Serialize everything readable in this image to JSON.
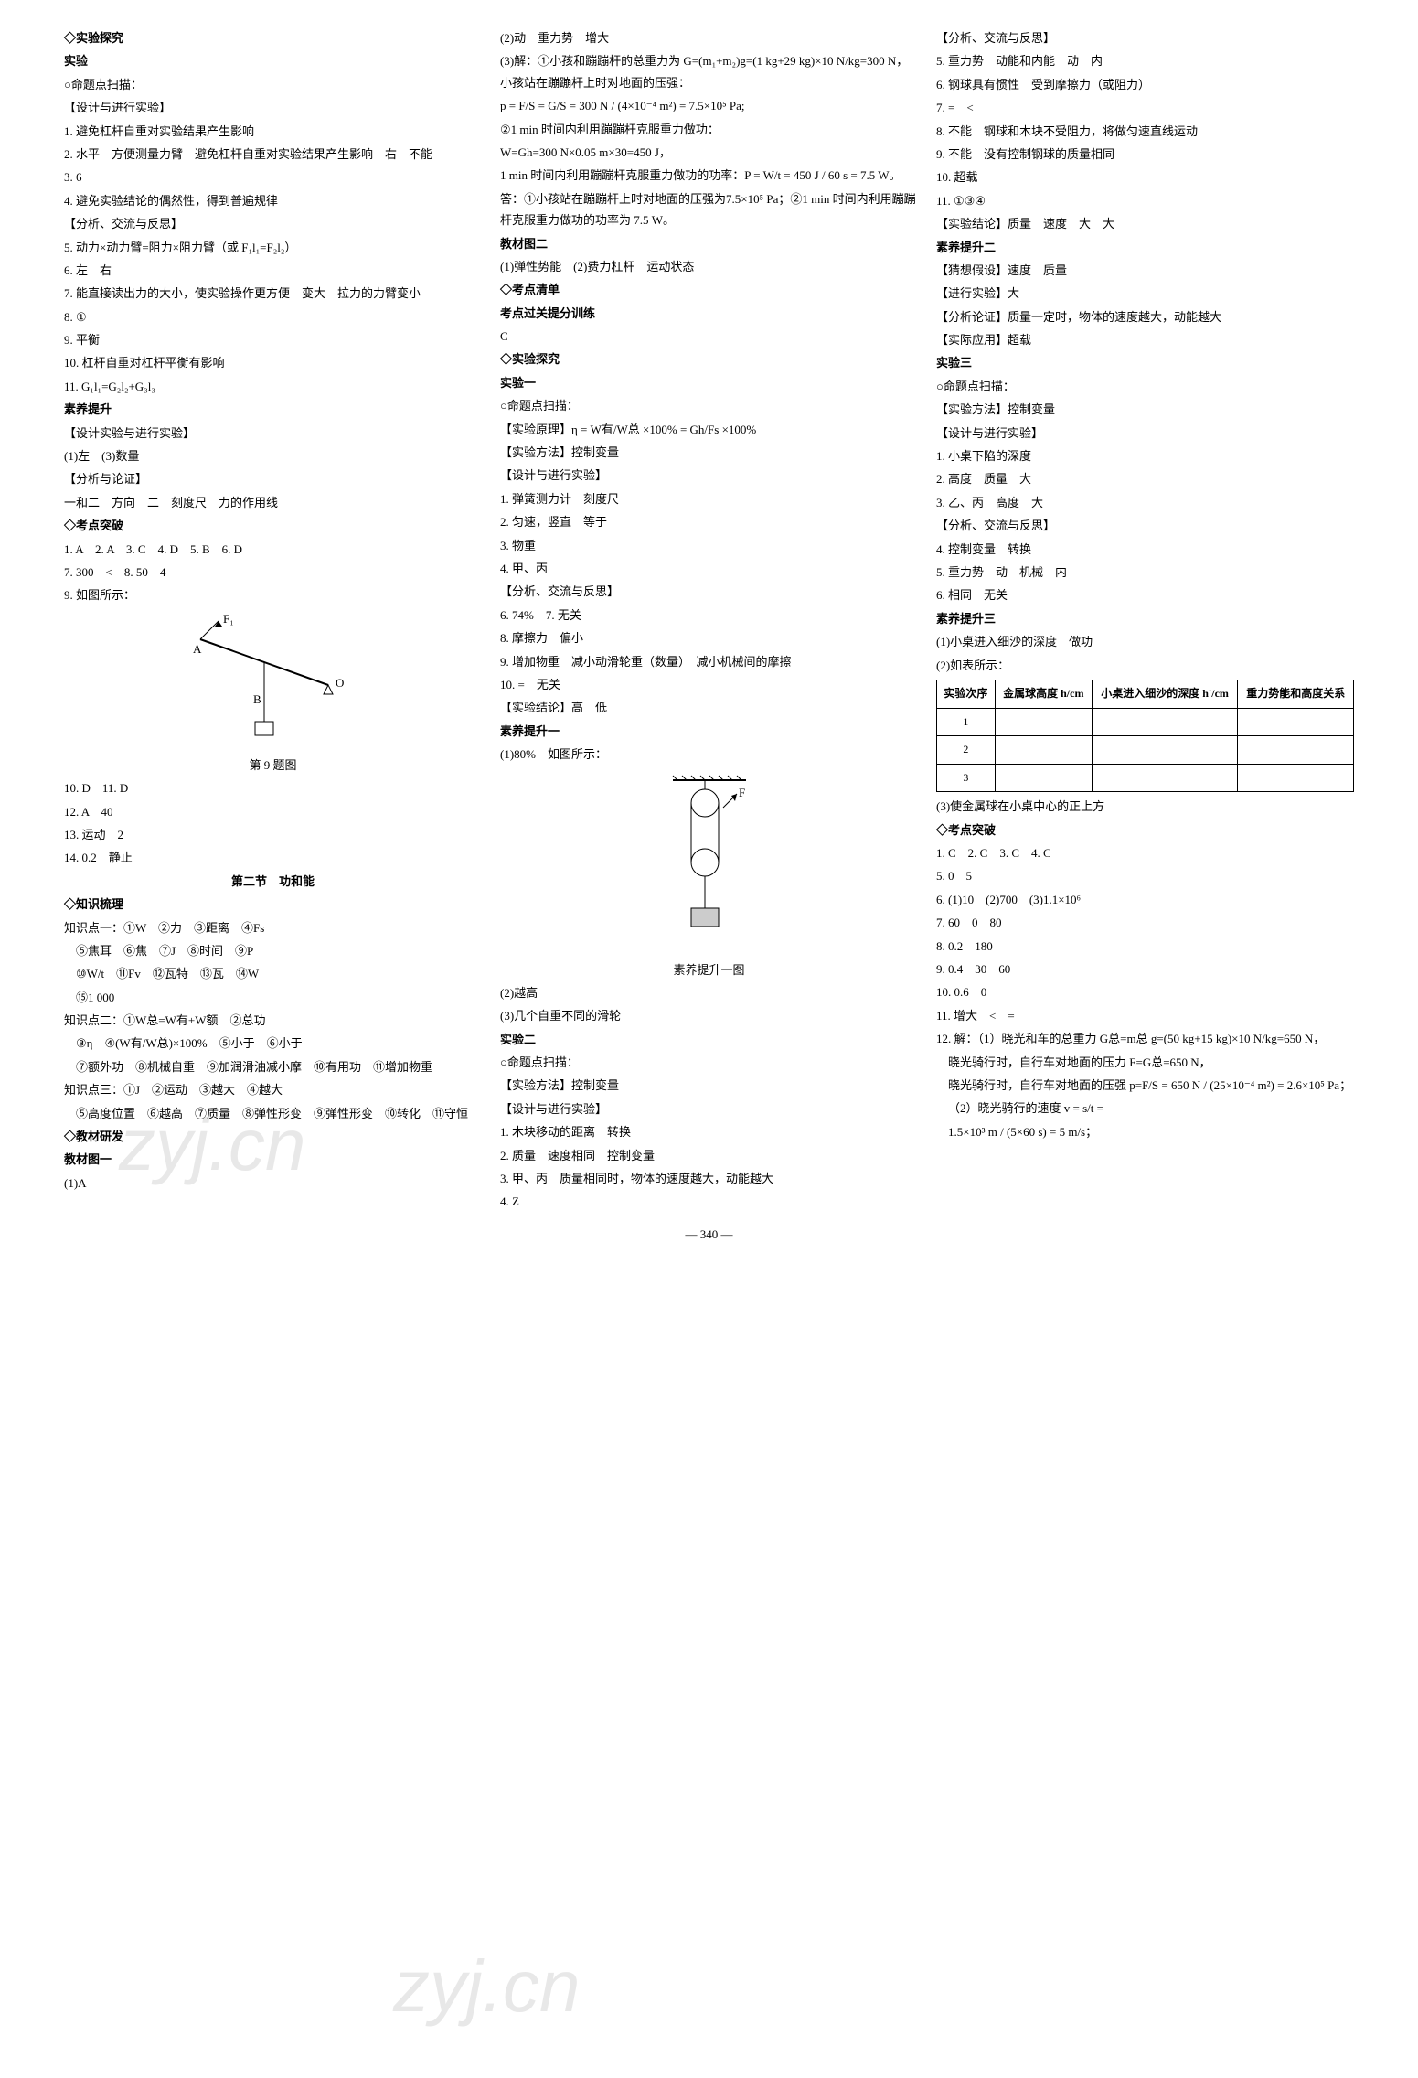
{
  "col1": {
    "h1": "◇实验探究",
    "h2": "实验",
    "h3": "○命题点扫描：",
    "h4": "【设计与进行实验】",
    "l1": "1. 避免杠杆自重对实验结果产生影响",
    "l2": "2. 水平　方便测量力臂　避免杠杆自重对实验结果产生影响　右　不能",
    "l3": "3. 6",
    "l4": "4. 避免实验结论的偶然性，得到普遍规律",
    "h5": "【分析、交流与反思】",
    "l5": "5. 动力×动力臂=阻力×阻力臂（或 F₁l₁=F₂l₂）",
    "l6": "6. 左　右",
    "l7": "7. 能直接读出力的大小，使实验操作更方便　变大　拉力的力臂变小",
    "l8": "8. ①",
    "l9": "9. 平衡",
    "l10": "10. 杠杆自重对杠杆平衡有影响",
    "l11": "11. G₁l₁=G₂l₂+G₃l₃",
    "h6": "素养提升",
    "h7": "【设计实验与进行实验】",
    "l12": "(1)左　(3)数量",
    "h8": "【分析与论证】",
    "l13": "一和二　方向　二　刻度尺　力的作用线",
    "h9": "◇考点突破",
    "l14": "1. A　2. A　3. C　4. D　5. B　6. D",
    "l15": "7. 300　<　8. 50　4",
    "l16": "9. 如图所示：",
    "figcap": "第 9 题图",
    "l17": "10. D　11. D",
    "l18": "12. A　40",
    "l19": "13. 运动　2",
    "l20": "14. 0.2　静止",
    "h10": "第二节　功和能",
    "h11": "◇知识梳理",
    "k1a": "知识点一：①W　②力　③距离　④Fs",
    "k1b": "⑤焦耳　⑥焦　⑦J　⑧时间　⑨P",
    "k1c": "⑩W/t　⑪Fv　⑫瓦特　⑬瓦　⑭W",
    "k1d": "⑮1 000",
    "k2a": "知识点二：①W总=W有+W额　②总功",
    "k2b": "③η　④(W有/W总)×100%　⑤小于　⑥小于",
    "k2c": "⑦额外功　⑧机械自重　⑨加润滑油减小摩　⑩有用功　⑪增加物重",
    "k3a": "知识点三：①J　②运动　③越大　④越大",
    "k3b": "⑤高度位置　⑥越高　⑦质量　⑧弹性形变　⑨弹性形变　⑩转化　⑪守恒",
    "h12": "◇教材研发",
    "h13": "教材图一",
    "l21": "(1)A"
  },
  "col2": {
    "l1": "(2)动　重力势　增大",
    "l2": "(3)解：①小孩和蹦蹦杆的总重力为 G=(m₁+m₂)g=(1 kg+29 kg)×10 N/kg=300 N，小孩站在蹦蹦杆上时对地面的压强：",
    "l3": "p = F/S = G/S = 300 N / (4×10⁻⁴ m²) = 7.5×10⁵ Pa;",
    "l4": "②1 min 时间内利用蹦蹦杆克服重力做功：",
    "l5": "W=Gh=300 N×0.05 m×30=450 J，",
    "l6": "1 min 时间内利用蹦蹦杆克服重力做功的功率：P = W/t = 450 J / 60 s = 7.5 W。",
    "l7": "答：①小孩站在蹦蹦杆上时对地面的压强为7.5×10⁵ Pa；②1 min 时间内利用蹦蹦杆克服重力做功的功率为 7.5 W。",
    "h1": "教材图二",
    "l8": "(1)弹性势能　(2)费力杠杆　运动状态",
    "h2": "◇考点清单",
    "h3": "考点过关提分训练",
    "l9": "C",
    "h4": "◇实验探究",
    "h5": "实验一",
    "h6": "○命题点扫描：",
    "l10": "【实验原理】η = W有/W总 ×100% = Gh/Fs ×100%",
    "l11": "【实验方法】控制变量",
    "h7": "【设计与进行实验】",
    "l12": "1. 弹簧测力计　刻度尺",
    "l13": "2. 匀速，竖直　等于",
    "l14": "3. 物重",
    "l15": "4. 甲、丙",
    "h8": "【分析、交流与反思】",
    "l16": "6. 74%　7. 无关",
    "l17": "8. 摩擦力　偏小",
    "l18": "9. 增加物重　减小动滑轮重（数量）　减小机械间的摩擦",
    "l19": "10. =　无关",
    "l20": "【实验结论】高　低",
    "h9": "素养提升一",
    "l21": "(1)80%　如图所示：",
    "figcap": "素养提升一图",
    "l22": "(2)越高",
    "l23": "(3)几个自重不同的滑轮",
    "h10": "实验二",
    "h11": "○命题点扫描：",
    "l24": "【实验方法】控制变量",
    "h12": "【设计与进行实验】",
    "l25": "1. 木块移动的距离　转换",
    "l26": "2. 质量　速度相同　控制变量",
    "l27": "3. 甲、丙　质量相同时，物体的速度越大，动能越大",
    "l28": "4. Z"
  },
  "col3": {
    "h1": "【分析、交流与反思】",
    "l1": "5. 重力势　动能和内能　动　内",
    "l2": "6. 钢球具有惯性　受到摩擦力（或阻力）",
    "l3": "7. =　<",
    "l4": "8. 不能　钢球和木块不受阻力，将做匀速直线运动",
    "l5": "9. 不能　没有控制钢球的质量相同",
    "l6": "10. 超载",
    "l7": "11. ①③④",
    "l8": "【实验结论】质量　速度　大　大",
    "h2": "素养提升二",
    "l9": "【猜想假设】速度　质量",
    "l10": "【进行实验】大",
    "l11": "【分析论证】质量一定时，物体的速度越大，动能越大",
    "l12": "【实际应用】超载",
    "h3": "实验三",
    "h4": "○命题点扫描：",
    "l13": "【实验方法】控制变量",
    "h5": "【设计与进行实验】",
    "l14": "1. 小桌下陷的深度",
    "l15": "2. 高度　质量　大",
    "l16": "3. 乙、丙　高度　大",
    "h6": "【分析、交流与反思】",
    "l17": "4. 控制变量　转换",
    "l18": "5. 重力势　动　机械　内",
    "l19": "6. 相同　无关",
    "h7": "素养提升三",
    "l20": "(1)小桌进入细沙的深度　做功",
    "l21": "(2)如表所示：",
    "table": {
      "headers": [
        "实验次序",
        "金属球高度 h/cm",
        "小桌进入细沙的深度 h'/cm",
        "重力势能和高度关系"
      ],
      "rows": [
        [
          "1",
          "",
          "",
          ""
        ],
        [
          "2",
          "",
          "",
          ""
        ],
        [
          "3",
          "",
          "",
          ""
        ]
      ]
    },
    "l22": "(3)使金属球在小桌中心的正上方",
    "h8": "◇考点突破",
    "l23": "1. C　2. C　3. C　4. C",
    "l24": "5. 0　5",
    "l25": "6. (1)10　(2)700　(3)1.1×10⁶",
    "l26": "7. 60　0　80",
    "l27": "8. 0.2　180",
    "l28": "9. 0.4　30　60",
    "l29": "10. 0.6　0",
    "l30": "11. 增大　<　=",
    "l31": "12. 解：（1）晓光和车的总重力 G总=m总 g=(50 kg+15 kg)×10 N/kg=650 N，",
    "l32": "晓光骑行时，自行车对地面的压力 F=G总=650 N，",
    "l33": "晓光骑行时，自行车对地面的压强 p=F/S = 650 N / (25×10⁻⁴ m²) = 2.6×10⁵ Pa；",
    "l34": "（2）晓光骑行的速度 v = s/t =",
    "l35": "1.5×10³ m / (5×60 s) = 5 m/s；"
  },
  "pagenum": "— 340 —",
  "watermark1": "zyj.cn",
  "watermark2": "zyj.cn",
  "diagram1": {
    "labels": {
      "F1": "F₁",
      "A": "A",
      "B": "B",
      "O": "O"
    },
    "colors": {
      "line": "#000"
    }
  },
  "diagram2": {
    "labels": {
      "F": "F"
    },
    "colors": {
      "line": "#000"
    }
  }
}
